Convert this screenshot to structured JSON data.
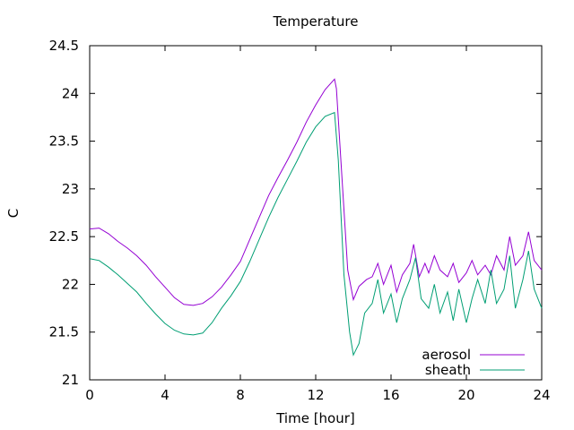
{
  "chart_data": {
    "type": "line",
    "title": "Temperature",
    "xlabel": "Time [hour]",
    "ylabel": "C",
    "xlim": [
      0,
      24
    ],
    "ylim": [
      21,
      24.5
    ],
    "xticks": [
      "0",
      "4",
      "8",
      "12",
      "16",
      "20",
      "24"
    ],
    "yticks": [
      "21",
      "21.5",
      "22",
      "22.5",
      "23",
      "23.5",
      "24",
      "24.5"
    ],
    "grid": false,
    "legend_position": "bottom-right",
    "series": [
      {
        "name": "aerosol",
        "color": "#9400d3",
        "points": [
          [
            0,
            22.58
          ],
          [
            0.5,
            22.59
          ],
          [
            1,
            22.53
          ],
          [
            1.5,
            22.45
          ],
          [
            2,
            22.38
          ],
          [
            2.5,
            22.3
          ],
          [
            3,
            22.2
          ],
          [
            3.5,
            22.08
          ],
          [
            4,
            21.97
          ],
          [
            4.5,
            21.86
          ],
          [
            5,
            21.79
          ],
          [
            5.5,
            21.78
          ],
          [
            6,
            21.8
          ],
          [
            6.5,
            21.87
          ],
          [
            7,
            21.97
          ],
          [
            7.5,
            22.1
          ],
          [
            8,
            22.24
          ],
          [
            8.5,
            22.47
          ],
          [
            9,
            22.7
          ],
          [
            9.5,
            22.93
          ],
          [
            10,
            23.12
          ],
          [
            10.5,
            23.3
          ],
          [
            11,
            23.49
          ],
          [
            11.5,
            23.7
          ],
          [
            12,
            23.88
          ],
          [
            12.5,
            24.04
          ],
          [
            13,
            24.15
          ],
          [
            13.1,
            24.05
          ],
          [
            13.4,
            23.1
          ],
          [
            13.7,
            22.15
          ],
          [
            14,
            21.84
          ],
          [
            14.3,
            21.98
          ],
          [
            14.7,
            22.05
          ],
          [
            15,
            22.08
          ],
          [
            15.3,
            22.22
          ],
          [
            15.6,
            22.0
          ],
          [
            16,
            22.2
          ],
          [
            16.3,
            21.92
          ],
          [
            16.6,
            22.1
          ],
          [
            17,
            22.22
          ],
          [
            17.2,
            22.42
          ],
          [
            17.5,
            22.08
          ],
          [
            17.8,
            22.22
          ],
          [
            18,
            22.12
          ],
          [
            18.3,
            22.3
          ],
          [
            18.6,
            22.15
          ],
          [
            19,
            22.08
          ],
          [
            19.3,
            22.22
          ],
          [
            19.6,
            22.02
          ],
          [
            20,
            22.12
          ],
          [
            20.3,
            22.25
          ],
          [
            20.6,
            22.1
          ],
          [
            21,
            22.2
          ],
          [
            21.3,
            22.1
          ],
          [
            21.6,
            22.3
          ],
          [
            22,
            22.15
          ],
          [
            22.3,
            22.5
          ],
          [
            22.6,
            22.2
          ],
          [
            23,
            22.3
          ],
          [
            23.3,
            22.55
          ],
          [
            23.6,
            22.25
          ],
          [
            24,
            22.15
          ]
        ]
      },
      {
        "name": "sheath",
        "color": "#009e73",
        "points": [
          [
            0,
            22.27
          ],
          [
            0.5,
            22.25
          ],
          [
            1,
            22.18
          ],
          [
            1.5,
            22.1
          ],
          [
            2,
            22.01
          ],
          [
            2.5,
            21.92
          ],
          [
            3,
            21.8
          ],
          [
            3.5,
            21.69
          ],
          [
            4,
            21.59
          ],
          [
            4.5,
            21.52
          ],
          [
            5,
            21.48
          ],
          [
            5.5,
            21.47
          ],
          [
            6,
            21.49
          ],
          [
            6.5,
            21.6
          ],
          [
            7,
            21.75
          ],
          [
            7.5,
            21.88
          ],
          [
            8,
            22.03
          ],
          [
            8.5,
            22.24
          ],
          [
            9,
            22.47
          ],
          [
            9.5,
            22.7
          ],
          [
            10,
            22.91
          ],
          [
            10.5,
            23.1
          ],
          [
            11,
            23.29
          ],
          [
            11.5,
            23.49
          ],
          [
            12,
            23.65
          ],
          [
            12.5,
            23.76
          ],
          [
            13,
            23.8
          ],
          [
            13.2,
            23.3
          ],
          [
            13.5,
            22.1
          ],
          [
            13.8,
            21.5
          ],
          [
            14,
            21.26
          ],
          [
            14.3,
            21.38
          ],
          [
            14.6,
            21.7
          ],
          [
            15,
            21.8
          ],
          [
            15.3,
            22.05
          ],
          [
            15.6,
            21.7
          ],
          [
            16,
            21.9
          ],
          [
            16.3,
            21.6
          ],
          [
            16.6,
            21.85
          ],
          [
            17,
            22.05
          ],
          [
            17.3,
            22.28
          ],
          [
            17.6,
            21.85
          ],
          [
            18,
            21.75
          ],
          [
            18.3,
            22.0
          ],
          [
            18.6,
            21.7
          ],
          [
            19,
            21.92
          ],
          [
            19.3,
            21.62
          ],
          [
            19.6,
            21.95
          ],
          [
            20,
            21.6
          ],
          [
            20.3,
            21.85
          ],
          [
            20.6,
            22.05
          ],
          [
            21,
            21.8
          ],
          [
            21.3,
            22.15
          ],
          [
            21.6,
            21.8
          ],
          [
            22,
            21.95
          ],
          [
            22.3,
            22.3
          ],
          [
            22.6,
            21.75
          ],
          [
            23,
            22.05
          ],
          [
            23.3,
            22.35
          ],
          [
            23.6,
            21.95
          ],
          [
            24,
            21.75
          ]
        ]
      }
    ]
  }
}
